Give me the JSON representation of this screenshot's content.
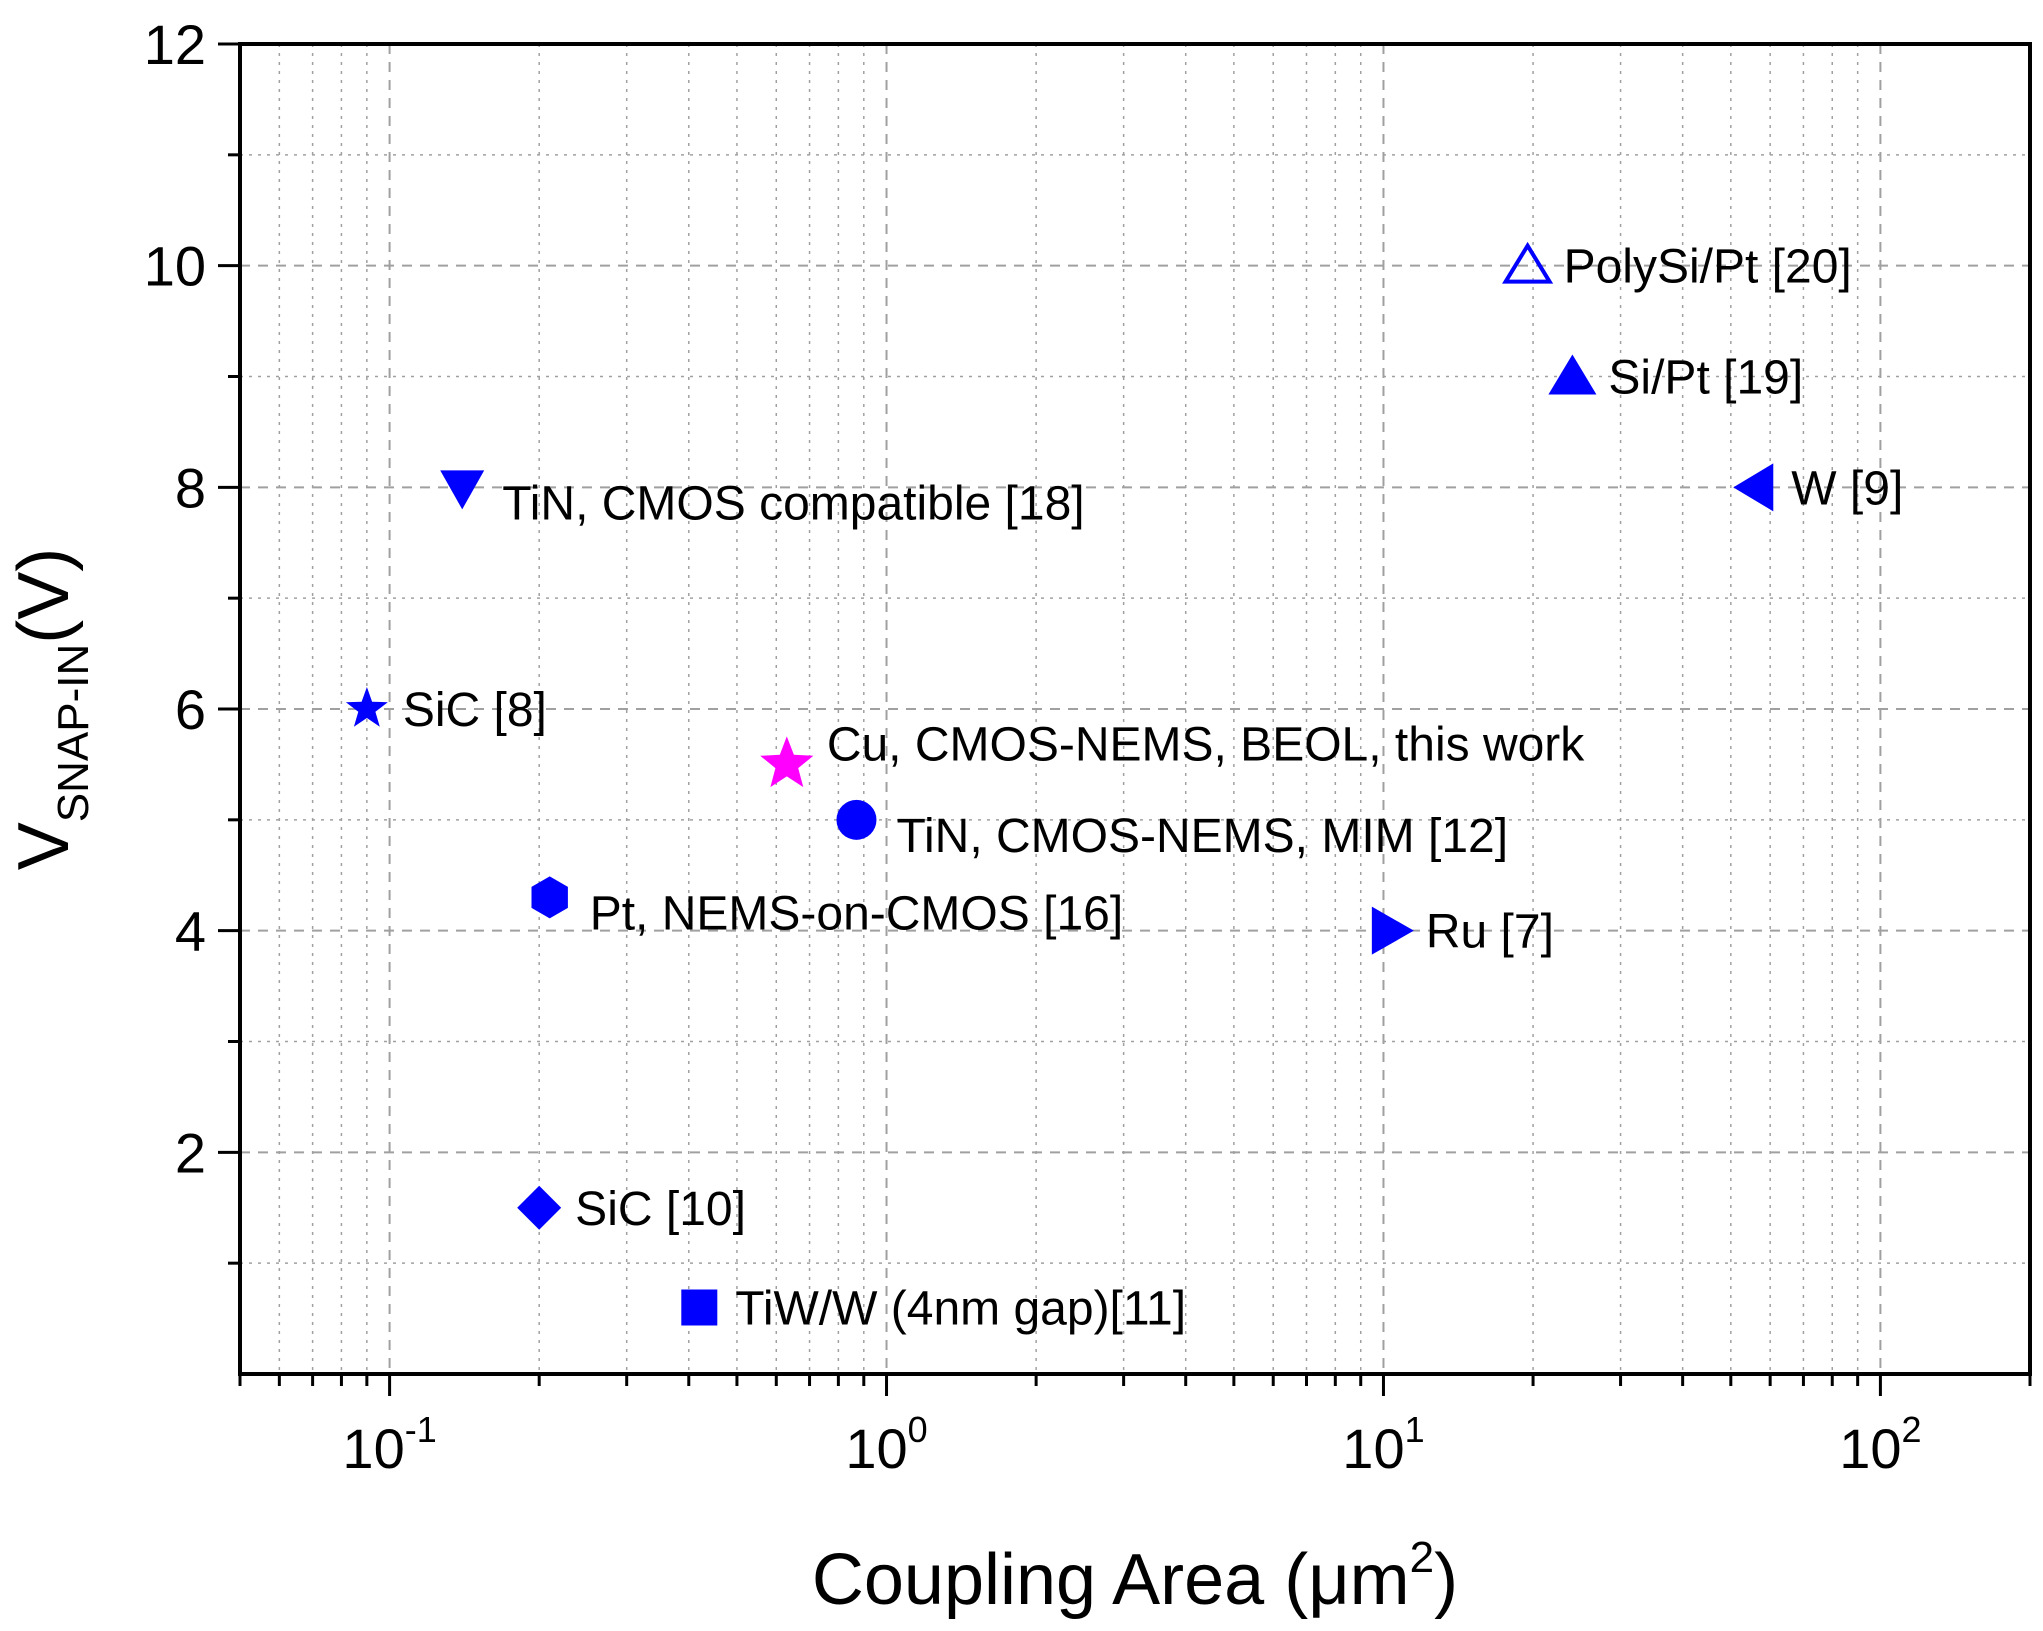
{
  "chart_data": {
    "type": "scatter",
    "x_scale": "log",
    "xlim": [
      0.05,
      200
    ],
    "ylim": [
      0,
      12
    ],
    "xlabel": {
      "main": "Coupling Area (",
      "unit": "μm",
      "sup": "2",
      "close": ")"
    },
    "ylabel": {
      "main": "V",
      "sub": "SNAP-IN",
      "rest": "(V)"
    },
    "x_ticks": [
      {
        "value": 0.1,
        "base": "10",
        "exp": "-1"
      },
      {
        "value": 1,
        "base": "10",
        "exp": "0"
      },
      {
        "value": 10,
        "base": "10",
        "exp": "1"
      },
      {
        "value": 100,
        "base": "10",
        "exp": "2"
      }
    ],
    "y_ticks": [
      2,
      4,
      6,
      8,
      10,
      12
    ],
    "grid": true,
    "colors": {
      "points": "#0000ff",
      "highlight": "#ff00ff",
      "grid": "#a0a0a0",
      "axis": "#000000"
    },
    "series": [
      {
        "label": "SiC [8]",
        "x": 0.09,
        "y": 6,
        "marker": "star",
        "color": "#0000ff",
        "label_pos": "right"
      },
      {
        "label": "TiN, CMOS compatible [18]",
        "x": 0.14,
        "y": 8,
        "marker": "triangle-down",
        "color": "#0000ff",
        "label_pos": "right-below"
      },
      {
        "label": "Pt, NEMS-on-CMOS [16]",
        "x": 0.21,
        "y": 4.3,
        "marker": "hexagon",
        "color": "#0000ff",
        "label_pos": "right-below"
      },
      {
        "label": "SiC [10]",
        "x": 0.2,
        "y": 1.5,
        "marker": "diamond",
        "color": "#0000ff",
        "label_pos": "right"
      },
      {
        "label": "TiW/W (4nm gap)[11]",
        "x": 0.42,
        "y": 0.6,
        "marker": "square",
        "color": "#0000ff",
        "label_pos": "right"
      },
      {
        "label": "Cu, CMOS-NEMS, BEOL, this work",
        "x": 0.63,
        "y": 5.5,
        "marker": "star",
        "color": "#ff00ff",
        "label_pos": "right-above"
      },
      {
        "label": "TiN, CMOS-NEMS, MIM [12]",
        "x": 0.87,
        "y": 5,
        "marker": "circle",
        "color": "#0000ff",
        "label_pos": "right-below"
      },
      {
        "label": "Ru [7]",
        "x": 10.3,
        "y": 4,
        "marker": "triangle-right",
        "color": "#0000ff",
        "label_pos": "right"
      },
      {
        "label": "PolySi/Pt [20]",
        "x": 19.5,
        "y": 10,
        "marker": "triangle-up-open",
        "color": "#0000ff",
        "label_pos": "right"
      },
      {
        "label": "Si/Pt [19]",
        "x": 24,
        "y": 9,
        "marker": "triangle-up",
        "color": "#0000ff",
        "label_pos": "right"
      },
      {
        "label": "W [9]",
        "x": 56,
        "y": 8,
        "marker": "triangle-left",
        "color": "#0000ff",
        "label_pos": "right"
      }
    ]
  }
}
